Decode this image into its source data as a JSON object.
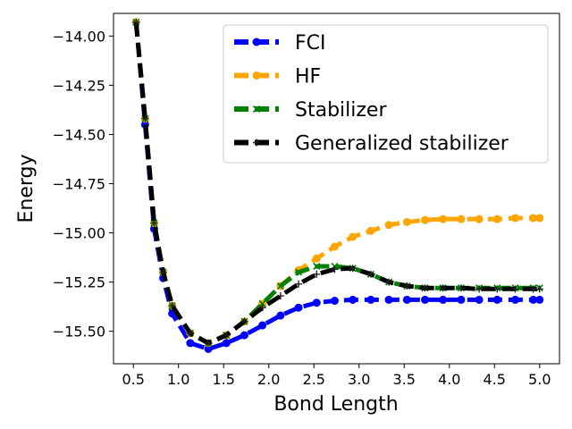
{
  "chart_data": {
    "type": "line",
    "title": "",
    "xlabel": "Bond Length",
    "ylabel": "Energy",
    "xlim": [
      0.28,
      5.22
    ],
    "ylim": [
      -15.665,
      -13.885
    ],
    "xticks": [
      0.5,
      1.0,
      1.5,
      2.0,
      2.5,
      3.0,
      3.5,
      4.0,
      4.5,
      5.0
    ],
    "xtick_labels": [
      "0.5",
      "1.0",
      "1.5",
      "2.0",
      "2.5",
      "3.0",
      "3.5",
      "4.0",
      "4.5",
      "5.0"
    ],
    "yticks": [
      -14.0,
      -14.25,
      -14.5,
      -14.75,
      -15.0,
      -15.25,
      -15.5
    ],
    "ytick_labels": [
      "−14.00",
      "−14.25",
      "−14.50",
      "−14.75",
      "−15.00",
      "−15.25",
      "−15.50"
    ],
    "legend_position": "upper-right",
    "x": [
      0.53,
      0.63,
      0.73,
      0.83,
      0.93,
      1.13,
      1.33,
      1.53,
      1.73,
      1.93,
      2.13,
      2.33,
      2.53,
      2.73,
      2.93,
      3.13,
      3.33,
      3.53,
      3.73,
      3.93,
      4.13,
      4.33,
      4.53,
      4.73,
      4.93,
      5.0
    ],
    "series": [
      {
        "name": "FCI",
        "color": "#0000ff",
        "marker": "circle",
        "values": [
          -13.93,
          -14.45,
          -14.98,
          -15.23,
          -15.41,
          -15.56,
          -15.59,
          -15.56,
          -15.52,
          -15.47,
          -15.42,
          -15.38,
          -15.355,
          -15.345,
          -15.34,
          -15.34,
          -15.34,
          -15.34,
          -15.34,
          -15.34,
          -15.34,
          -15.34,
          -15.34,
          -15.34,
          -15.34,
          -15.34
        ]
      },
      {
        "name": "HF",
        "color": "#ffa500",
        "marker": "circle",
        "values": [
          -13.93,
          -14.42,
          -14.95,
          -15.2,
          -15.37,
          -15.51,
          -15.56,
          -15.52,
          -15.45,
          -15.36,
          -15.27,
          -15.19,
          -15.13,
          -15.07,
          -15.02,
          -14.99,
          -14.96,
          -14.945,
          -14.935,
          -14.93,
          -14.93,
          -14.93,
          -14.93,
          -14.925,
          -14.925,
          -14.925
        ]
      },
      {
        "name": "Stabilizer",
        "color": "#008000",
        "marker": "x",
        "values": [
          -13.93,
          -14.42,
          -14.95,
          -15.2,
          -15.37,
          -15.51,
          -15.56,
          -15.52,
          -15.45,
          -15.36,
          -15.27,
          -15.2,
          -15.17,
          -15.17,
          -15.18,
          -15.21,
          -15.25,
          -15.27,
          -15.28,
          -15.28,
          -15.28,
          -15.28,
          -15.28,
          -15.28,
          -15.28,
          -15.28
        ]
      },
      {
        "name": "Generalized stabilizer",
        "color": "#000000",
        "marker": "plus",
        "values": [
          -13.93,
          -14.42,
          -14.95,
          -15.2,
          -15.37,
          -15.51,
          -15.56,
          -15.52,
          -15.45,
          -15.38,
          -15.32,
          -15.26,
          -15.21,
          -15.185,
          -15.18,
          -15.21,
          -15.25,
          -15.27,
          -15.28,
          -15.28,
          -15.28,
          -15.285,
          -15.285,
          -15.285,
          -15.285,
          -15.285
        ]
      }
    ]
  }
}
